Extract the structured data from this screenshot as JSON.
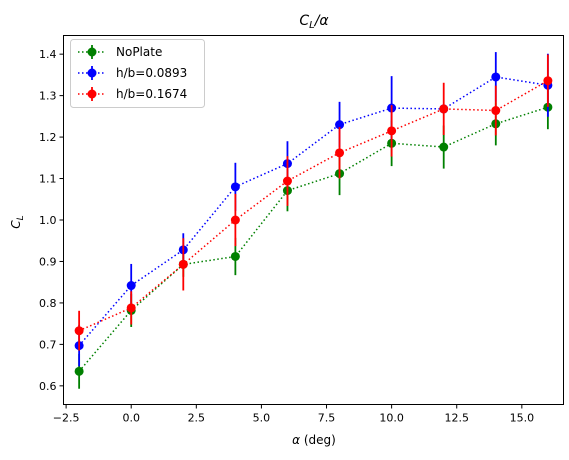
{
  "chart_data": {
    "type": "line",
    "title_main": "C",
    "title_sub": "L",
    "title_tail": "/α",
    "xlabel_sym": "α",
    "xlabel_unit": " (deg)",
    "ylabel_main": "C",
    "ylabel_sub": "L",
    "xlim": [
      -2.6,
      16.6
    ],
    "ylim": [
      0.555,
      1.445
    ],
    "xticks": [
      -2.5,
      0.0,
      2.5,
      5.0,
      7.5,
      10.0,
      12.5,
      15.0
    ],
    "xtick_labels": [
      "−2.5",
      "0.0",
      "2.5",
      "5.0",
      "7.5",
      "10.0",
      "12.5",
      "15.0"
    ],
    "yticks": [
      0.6,
      0.7,
      0.8,
      0.9,
      1.0,
      1.1,
      1.2,
      1.3,
      1.4
    ],
    "ytick_labels": [
      "0.6",
      "0.7",
      "0.8",
      "0.9",
      "1.0",
      "1.1",
      "1.2",
      "1.3",
      "1.4"
    ],
    "grid": false,
    "legend_position": "top-left",
    "line_style": "dotted",
    "x": [
      -2,
      0,
      2,
      4,
      6,
      8,
      10,
      12,
      14,
      16
    ],
    "series": [
      {
        "name": "NoPlate",
        "color": "#008000",
        "values": [
          0.635,
          0.782,
          0.893,
          0.912,
          1.071,
          1.112,
          1.185,
          1.176,
          1.232,
          1.272
        ],
        "errors": [
          0.042,
          0.04,
          0.03,
          0.045,
          0.05,
          0.052,
          0.055,
          0.052,
          0.052,
          0.053
        ]
      },
      {
        "name": "h/b=0.0893",
        "color": "#0000ff",
        "values": [
          0.697,
          0.842,
          0.928,
          1.08,
          1.136,
          1.23,
          1.27,
          1.268,
          1.345,
          1.325
        ],
        "errors": [
          0.05,
          0.052,
          0.04,
          0.058,
          0.054,
          0.055,
          0.077,
          0.0,
          0.06,
          0.076
        ]
      },
      {
        "name": "h/b=0.1674",
        "color": "#ff0000",
        "values": [
          0.733,
          0.788,
          0.893,
          1.0,
          1.094,
          1.162,
          1.215,
          1.268,
          1.264,
          1.336
        ],
        "errors": [
          0.048,
          0.04,
          0.063,
          0.063,
          0.06,
          0.062,
          0.062,
          0.063,
          0.06,
          0.063
        ]
      }
    ]
  }
}
